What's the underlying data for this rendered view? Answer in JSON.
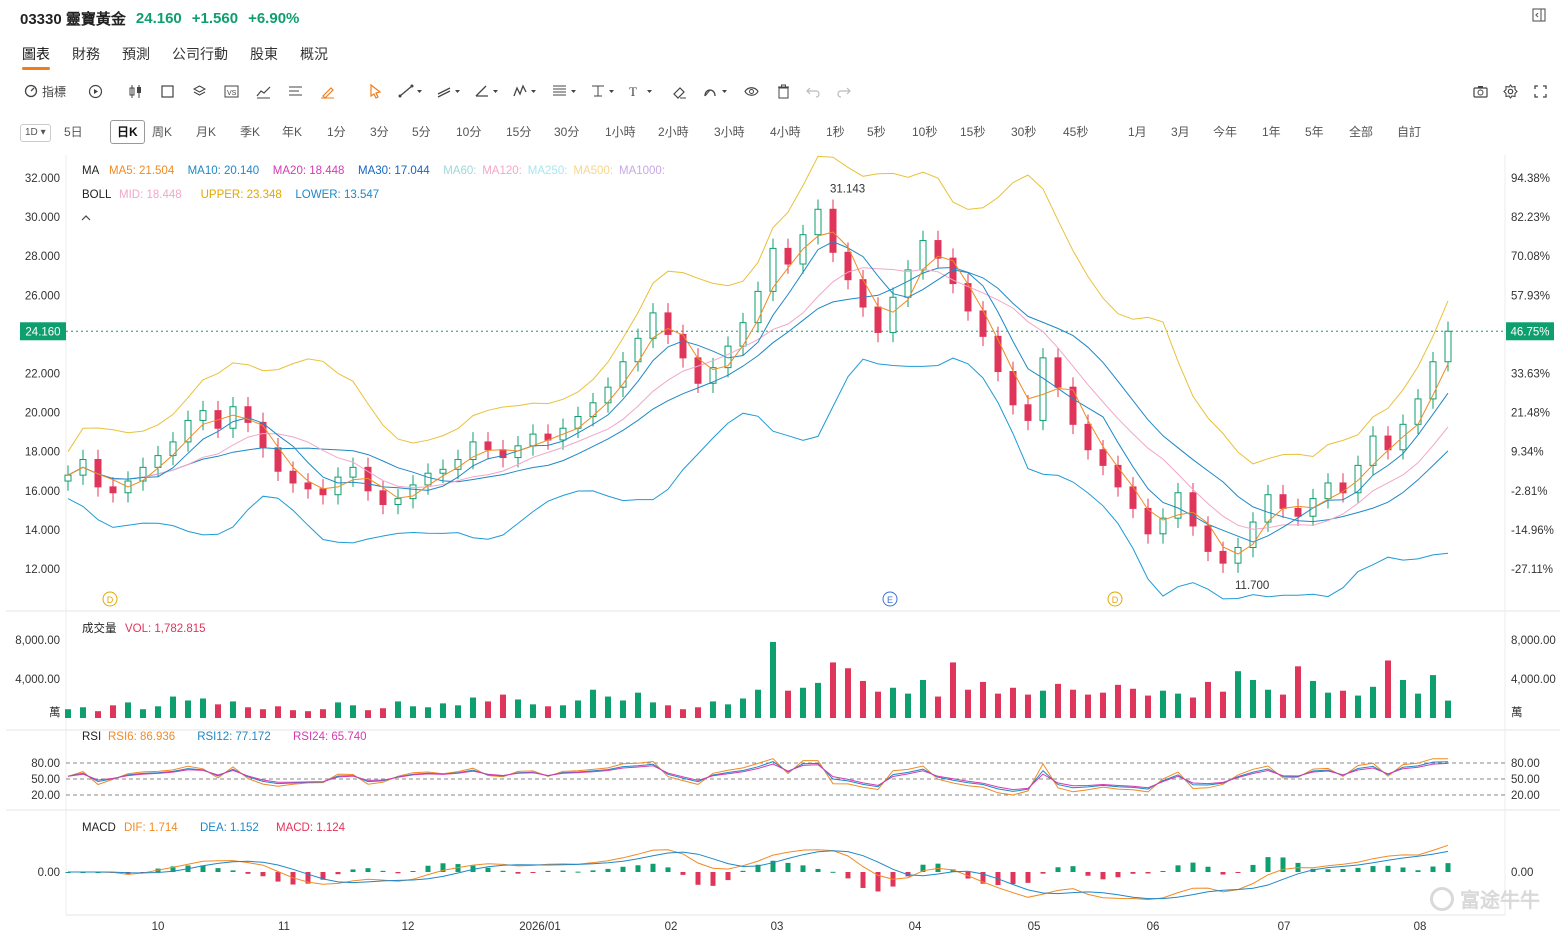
{
  "header": {
    "code_name": "03330 靈寶黃金",
    "price": "24.160",
    "change": "+1.560",
    "change_pct": "+6.90%",
    "up_color": "#0e9f6e"
  },
  "main_tabs": [
    "圖表",
    "財務",
    "預測",
    "公司行動",
    "股東",
    "概況"
  ],
  "toolbar": {
    "indicator_label": "指標"
  },
  "periods": {
    "selector": "1D",
    "items": [
      "5日",
      "日K",
      "周K",
      "月K",
      "季K",
      "年K",
      "1分",
      "3分",
      "5分",
      "10分",
      "15分",
      "30分",
      "1小時",
      "2小時",
      "3小時",
      "4小時",
      "1秒",
      "5秒",
      "10秒",
      "15秒",
      "30秒",
      "45秒",
      "1月",
      "3月",
      "今年",
      "1年",
      "5年",
      "全部",
      "自訂"
    ],
    "active": "日K"
  },
  "price_axis": {
    "left_ticks": [
      "32.000",
      "30.000",
      "28.000",
      "26.000",
      "24.160",
      "22.000",
      "20.000",
      "18.000",
      "16.000",
      "14.000",
      "12.000"
    ],
    "right_ticks": [
      "94.38%",
      "82.23%",
      "70.08%",
      "57.93%",
      "46.75%",
      "33.63%",
      "21.48%",
      "9.34%",
      "-2.81%",
      "-14.96%",
      "-27.11%"
    ],
    "current_price_label": "24.160",
    "current_pct_label": "46.75%",
    "high_label": "31.143",
    "low_label": "11.700"
  },
  "legend_ma": {
    "title": "MA",
    "items": [
      {
        "text": "MA5: 21.504",
        "color": "#f08a24"
      },
      {
        "text": "MA10: 20.140",
        "color": "#1e88c7"
      },
      {
        "text": "MA20: 18.448",
        "color": "#d63ab0"
      },
      {
        "text": "MA30: 17.044",
        "color": "#1565c0"
      },
      {
        "text": "MA60:",
        "color": "#9ed8d8"
      },
      {
        "text": "MA120:",
        "color": "#f3a6c8"
      },
      {
        "text": "MA250:",
        "color": "#a8e6f0"
      },
      {
        "text": "MA500:",
        "color": "#f7d78a"
      },
      {
        "text": "MA1000:",
        "color": "#c8a8e8"
      }
    ]
  },
  "legend_boll": {
    "title": "BOLL",
    "items": [
      {
        "text": "MID: 18.448",
        "color": "#f3a6c8"
      },
      {
        "text": "UPPER: 23.348",
        "color": "#e0a800"
      },
      {
        "text": "LOWER: 13.547",
        "color": "#1e88c7"
      }
    ]
  },
  "event_markers": [
    "D",
    "E",
    "D"
  ],
  "volume": {
    "title": "成交量",
    "value": "VOL: 1,782.815",
    "ticks": [
      "8,000.00",
      "4,000.00"
    ],
    "unit": "萬"
  },
  "rsi": {
    "title": "RSI",
    "items": [
      {
        "text": "RSI6: 86.936",
        "color": "#f08a24"
      },
      {
        "text": "RSI12: 77.172",
        "color": "#1e88c7"
      },
      {
        "text": "RSI24: 65.740",
        "color": "#d63ab0"
      }
    ],
    "ticks": [
      "80.00",
      "50.00",
      "20.00"
    ]
  },
  "macd": {
    "title": "MACD",
    "items": [
      {
        "text": "DIF: 1.714",
        "color": "#f08a24"
      },
      {
        "text": "DEA: 1.152",
        "color": "#1e88c7"
      },
      {
        "text": "MACD: 1.124",
        "color": "#e0355a"
      }
    ],
    "ticks": [
      "0.00"
    ]
  },
  "x_axis": [
    "10",
    "11",
    "12",
    "2026/01",
    "02",
    "03",
    "04",
    "05",
    "06",
    "07",
    "08"
  ],
  "watermark": "富途牛牛",
  "colors": {
    "up": "#0e9f6e",
    "down": "#e0355a"
  },
  "chart_data": {
    "type": "line",
    "price_closes": [
      16.8,
      17.6,
      16.2,
      15.9,
      16.5,
      17.2,
      17.8,
      18.5,
      19.6,
      20.1,
      19.2,
      20.3,
      19.5,
      18.2,
      17.0,
      16.4,
      16.1,
      15.8,
      16.7,
      17.2,
      16.0,
      15.3,
      15.6,
      16.3,
      16.9,
      17.1,
      17.6,
      18.5,
      18.1,
      17.7,
      18.3,
      18.9,
      18.6,
      19.2,
      19.8,
      20.5,
      21.3,
      22.6,
      23.8,
      25.1,
      24.0,
      22.8,
      21.5,
      22.3,
      23.4,
      24.6,
      26.2,
      28.4,
      27.6,
      29.1,
      30.4,
      28.2,
      26.8,
      25.4,
      24.1,
      25.9,
      27.3,
      28.8,
      27.9,
      26.6,
      25.2,
      23.9,
      22.1,
      20.4,
      19.6,
      22.8,
      21.3,
      19.4,
      18.1,
      17.3,
      16.2,
      15.1,
      13.8,
      14.6,
      15.9,
      14.2,
      12.9,
      12.3,
      13.1,
      14.4,
      15.8,
      15.1,
      14.7,
      15.6,
      16.4,
      15.9,
      17.3,
      18.8,
      18.1,
      19.4,
      20.7,
      22.6,
      24.16
    ],
    "volume": [
      900,
      1100,
      700,
      1300,
      1600,
      900,
      1200,
      2200,
      1800,
      2000,
      1400,
      1700,
      1100,
      900,
      1200,
      800,
      700,
      900,
      1600,
      1300,
      800,
      1000,
      1700,
      1200,
      1100,
      1500,
      1300,
      2100,
      1700,
      2400,
      1900,
      1400,
      1200,
      1300,
      1800,
      2900,
      2200,
      1800,
      2600,
      1600,
      1300,
      900,
      1100,
      1700,
      1400,
      2000,
      2900,
      7800,
      2800,
      3100,
      3600,
      5700,
      5100,
      3800,
      2700,
      3100,
      2500,
      3900,
      2200,
      5700,
      2900,
      3700,
      2500,
      3100,
      2400,
      2800,
      3500,
      2900,
      2400,
      2600,
      3400,
      3000,
      2300,
      2800,
      2500,
      2100,
      3700,
      2700,
      4800,
      3900,
      2900,
      2400,
      5300,
      3800,
      2600,
      2800,
      2300,
      3200,
      5900,
      3900,
      2500,
      4400,
      1783
    ],
    "rsi_ticks": [
      80,
      50,
      20
    ],
    "macd_zero": 0
  }
}
